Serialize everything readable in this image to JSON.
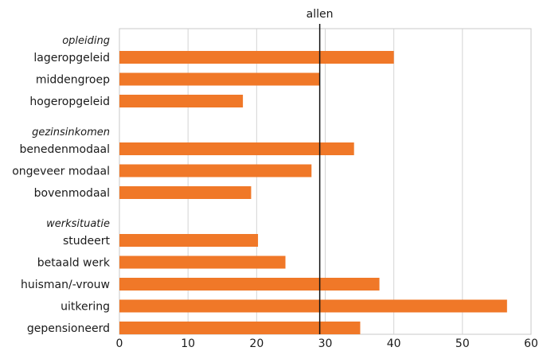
{
  "chart_data": {
    "type": "bar",
    "orientation": "horizontal",
    "xlim": [
      0,
      60
    ],
    "xticks": [
      "0",
      "10",
      "20",
      "30",
      "40",
      "50",
      "60"
    ],
    "grid": true,
    "bar_color": "#f07828",
    "reference_line": {
      "label": "allen",
      "value": 29.2
    },
    "groups": [
      {
        "heading": "opleiding",
        "categories": [
          "lageropgeleid",
          "middengroep",
          "hogeropgeleid"
        ],
        "values": [
          40,
          29.2,
          18
        ]
      },
      {
        "heading": "gezinsinkomen",
        "categories": [
          "benedenmodaal",
          "ongeveer modaal",
          "bovenmodaal"
        ],
        "values": [
          34.2,
          28,
          19.2
        ]
      },
      {
        "heading": "werksituatie",
        "categories": [
          "studeert",
          "betaald werk",
          "huisman/-vrouw",
          "uitkering",
          "gepensioneerd"
        ],
        "values": [
          20.2,
          24.2,
          37.9,
          56.5,
          35.1
        ]
      }
    ]
  }
}
